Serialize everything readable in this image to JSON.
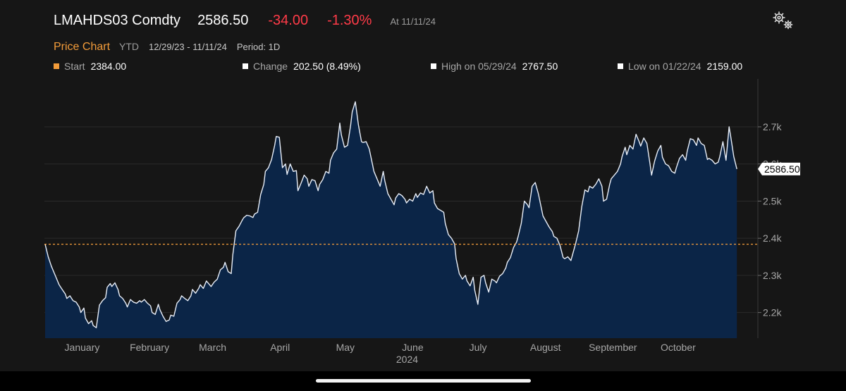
{
  "header": {
    "ticker": "LMAHDS03 Comdty",
    "last_price": "2586.50",
    "net_change": "-34.00",
    "pct_change": "-1.30%",
    "as_of": "At 11/11/24",
    "settings_icon": "gears-icon"
  },
  "subheader": {
    "chart_label": "Price Chart",
    "range_button": "YTD",
    "date_range": "12/29/23 - 11/11/24",
    "period": "Period: 1D"
  },
  "stats": [
    {
      "key": "Start",
      "value": "2384.00",
      "color": "#f39c3a"
    },
    {
      "key": "Change",
      "value": "202.50 (8.49%)",
      "color": "#ffffff"
    },
    {
      "key": "High on 05/29/24",
      "value": "2767.50",
      "color": "#ffffff"
    },
    {
      "key": "Low on 01/22/24",
      "value": "2159.00",
      "color": "#ffffff"
    }
  ],
  "colors": {
    "line": "#e8eef8",
    "fill": "#0b2547",
    "reference_line": "#f39c3a",
    "negative": "#ff3b48",
    "accent": "#f39c3a",
    "gridline": "#2a2a2a"
  },
  "chart_data": {
    "type": "area",
    "x_start": "2023-12-29",
    "x_end": "2024-11-11",
    "x_tick_labels": [
      "January",
      "February",
      "March",
      "April",
      "May",
      "June",
      "July",
      "August",
      "September",
      "October"
    ],
    "x_tick_dates": [
      "2024-01-15",
      "2024-02-15",
      "2024-03-15",
      "2024-04-15",
      "2024-05-15",
      "2024-06-15",
      "2024-07-15",
      "2024-08-15",
      "2024-09-15",
      "2024-10-15"
    ],
    "x_sublabel": "2024",
    "y_ticks": [
      2200,
      2300,
      2400,
      2500,
      2600,
      2700
    ],
    "y_tick_labels": [
      "2.2k",
      "2.3k",
      "2.4k",
      "2.5k",
      "2.6k",
      "2.7k"
    ],
    "ylim": [
      2131,
      2829
    ],
    "reference_value": 2384.0,
    "last_value_label": "2586.50",
    "grid": true,
    "series": [
      {
        "values": [
          [
            0,
            2384
          ],
          [
            2,
            2350
          ],
          [
            4,
            2325
          ],
          [
            7,
            2295
          ],
          [
            9,
            2275
          ],
          [
            11,
            2262
          ],
          [
            13,
            2250
          ],
          [
            14,
            2238
          ],
          [
            16,
            2245
          ],
          [
            18,
            2232
          ],
          [
            20,
            2228
          ],
          [
            22,
            2215
          ],
          [
            23,
            2200
          ],
          [
            25,
            2212
          ],
          [
            26,
            2185
          ],
          [
            28,
            2170
          ],
          [
            30,
            2178
          ],
          [
            31,
            2165
          ],
          [
            33,
            2159
          ],
          [
            35,
            2220
          ],
          [
            37,
            2232
          ],
          [
            39,
            2240
          ],
          [
            40,
            2268
          ],
          [
            42,
            2278
          ],
          [
            43,
            2270
          ],
          [
            45,
            2280
          ],
          [
            47,
            2262
          ],
          [
            48,
            2245
          ],
          [
            50,
            2238
          ],
          [
            52,
            2225
          ],
          [
            53,
            2215
          ],
          [
            55,
            2235
          ],
          [
            57,
            2228
          ],
          [
            59,
            2225
          ],
          [
            61,
            2232
          ],
          [
            62,
            2228
          ],
          [
            64,
            2235
          ],
          [
            66,
            2225
          ],
          [
            68,
            2218
          ],
          [
            69,
            2200
          ],
          [
            71,
            2195
          ],
          [
            73,
            2222
          ],
          [
            74,
            2208
          ],
          [
            76,
            2190
          ],
          [
            78,
            2176
          ],
          [
            80,
            2180
          ],
          [
            81,
            2193
          ],
          [
            83,
            2190
          ],
          [
            85,
            2225
          ],
          [
            87,
            2235
          ],
          [
            88,
            2245
          ],
          [
            90,
            2238
          ],
          [
            92,
            2232
          ],
          [
            94,
            2245
          ],
          [
            95,
            2262
          ],
          [
            97,
            2252
          ],
          [
            99,
            2265
          ],
          [
            100,
            2275
          ],
          [
            102,
            2265
          ],
          [
            104,
            2285
          ],
          [
            105,
            2280
          ],
          [
            107,
            2270
          ],
          [
            109,
            2282
          ],
          [
            111,
            2290
          ],
          [
            113,
            2315
          ],
          [
            115,
            2322
          ],
          [
            116,
            2335
          ],
          [
            118,
            2310
          ],
          [
            120,
            2305
          ],
          [
            121,
            2355
          ],
          [
            123,
            2420
          ],
          [
            125,
            2432
          ],
          [
            127,
            2448
          ],
          [
            128,
            2455
          ],
          [
            130,
            2462
          ],
          [
            132,
            2460
          ],
          [
            134,
            2456
          ],
          [
            135,
            2465
          ],
          [
            137,
            2470
          ],
          [
            139,
            2518
          ],
          [
            141,
            2545
          ],
          [
            142,
            2580
          ],
          [
            144,
            2590
          ],
          [
            146,
            2612
          ],
          [
            148,
            2650
          ],
          [
            149,
            2674
          ],
          [
            151,
            2672
          ],
          [
            153,
            2590
          ],
          [
            155,
            2600
          ],
          [
            156,
            2572
          ],
          [
            158,
            2600
          ],
          [
            160,
            2580
          ],
          [
            162,
            2582
          ],
          [
            163,
            2528
          ],
          [
            165,
            2548
          ],
          [
            167,
            2570
          ],
          [
            169,
            2560
          ],
          [
            170,
            2540
          ],
          [
            172,
            2558
          ],
          [
            174,
            2555
          ],
          [
            176,
            2528
          ],
          [
            177,
            2545
          ],
          [
            179,
            2558
          ],
          [
            181,
            2580
          ],
          [
            183,
            2575
          ],
          [
            184,
            2610
          ],
          [
            186,
            2630
          ],
          [
            188,
            2640
          ],
          [
            190,
            2710
          ],
          [
            191,
            2678
          ],
          [
            193,
            2645
          ],
          [
            195,
            2650
          ],
          [
            197,
            2705
          ],
          [
            198,
            2740
          ],
          [
            200,
            2767.5
          ],
          [
            202,
            2705
          ],
          [
            204,
            2660
          ],
          [
            205,
            2658
          ],
          [
            207,
            2660
          ],
          [
            209,
            2640
          ],
          [
            211,
            2600
          ],
          [
            212,
            2580
          ],
          [
            214,
            2560
          ],
          [
            216,
            2540
          ],
          [
            218,
            2580
          ],
          [
            219,
            2555
          ],
          [
            221,
            2520
          ],
          [
            223,
            2505
          ],
          [
            225,
            2490
          ],
          [
            226,
            2508
          ],
          [
            228,
            2520
          ],
          [
            230,
            2515
          ],
          [
            232,
            2505
          ],
          [
            233,
            2495
          ],
          [
            235,
            2505
          ],
          [
            237,
            2500
          ],
          [
            239,
            2520
          ],
          [
            240,
            2510
          ],
          [
            242,
            2522
          ],
          [
            244,
            2518
          ],
          [
            246,
            2540
          ],
          [
            248,
            2522
          ],
          [
            250,
            2528
          ],
          [
            251,
            2495
          ],
          [
            253,
            2480
          ],
          [
            255,
            2475
          ],
          [
            257,
            2470
          ],
          [
            258,
            2440
          ],
          [
            260,
            2410
          ],
          [
            262,
            2400
          ],
          [
            264,
            2385
          ],
          [
            265,
            2345
          ],
          [
            267,
            2305
          ],
          [
            269,
            2290
          ],
          [
            271,
            2300
          ],
          [
            272,
            2285
          ],
          [
            274,
            2272
          ],
          [
            276,
            2295
          ],
          [
            277,
            2260
          ],
          [
            279,
            2222
          ],
          [
            281,
            2295
          ],
          [
            283,
            2300
          ],
          [
            284,
            2280
          ],
          [
            286,
            2255
          ],
          [
            288,
            2290
          ],
          [
            290,
            2285
          ],
          [
            291,
            2280
          ],
          [
            293,
            2298
          ],
          [
            295,
            2305
          ],
          [
            297,
            2320
          ],
          [
            298,
            2335
          ],
          [
            300,
            2348
          ],
          [
            302,
            2375
          ],
          [
            304,
            2390
          ],
          [
            305,
            2405
          ],
          [
            307,
            2440
          ],
          [
            309,
            2500
          ],
          [
            311,
            2490
          ],
          [
            312,
            2482
          ],
          [
            314,
            2540
          ],
          [
            316,
            2550
          ],
          [
            318,
            2520
          ],
          [
            320,
            2480
          ],
          [
            321,
            2460
          ],
          [
            323,
            2445
          ],
          [
            325,
            2430
          ],
          [
            327,
            2418
          ],
          [
            328,
            2405
          ],
          [
            330,
            2400
          ],
          [
            332,
            2380
          ],
          [
            334,
            2348
          ],
          [
            335,
            2345
          ],
          [
            337,
            2350
          ],
          [
            339,
            2340
          ],
          [
            341,
            2370
          ],
          [
            342,
            2385
          ],
          [
            344,
            2420
          ],
          [
            346,
            2485
          ],
          [
            348,
            2530
          ],
          [
            350,
            2525
          ],
          [
            351,
            2540
          ],
          [
            353,
            2535
          ],
          [
            355,
            2545
          ],
          [
            357,
            2560
          ],
          [
            359,
            2540
          ],
          [
            360,
            2500
          ],
          [
            362,
            2505
          ],
          [
            364,
            2545
          ],
          [
            365,
            2560
          ],
          [
            367,
            2570
          ],
          [
            369,
            2580
          ],
          [
            371,
            2600
          ],
          [
            372,
            2620
          ],
          [
            374,
            2645
          ],
          [
            375,
            2625
          ],
          [
            377,
            2650
          ],
          [
            379,
            2640
          ],
          [
            381,
            2680
          ],
          [
            383,
            2660
          ],
          [
            384,
            2648
          ],
          [
            386,
            2670
          ],
          [
            388,
            2655
          ],
          [
            390,
            2600
          ],
          [
            391,
            2570
          ],
          [
            393,
            2608
          ],
          [
            395,
            2635
          ],
          [
            397,
            2650
          ],
          [
            398,
            2618
          ],
          [
            400,
            2600
          ],
          [
            402,
            2595
          ],
          [
            404,
            2580
          ],
          [
            406,
            2575
          ],
          [
            407,
            2590
          ],
          [
            409,
            2615
          ],
          [
            411,
            2625
          ],
          [
            413,
            2610
          ],
          [
            414,
            2635
          ],
          [
            416,
            2668
          ],
          [
            418,
            2665
          ],
          [
            420,
            2650
          ],
          [
            421,
            2670
          ],
          [
            423,
            2655
          ],
          [
            425,
            2650
          ],
          [
            427,
            2612
          ],
          [
            428,
            2615
          ],
          [
            430,
            2610
          ],
          [
            432,
            2600
          ],
          [
            434,
            2605
          ],
          [
            435,
            2620
          ],
          [
            437,
            2660
          ],
          [
            439,
            2610
          ],
          [
            441,
            2700
          ],
          [
            442,
            2675
          ],
          [
            444,
            2620
          ],
          [
            446,
            2586.5
          ]
        ]
      }
    ]
  }
}
